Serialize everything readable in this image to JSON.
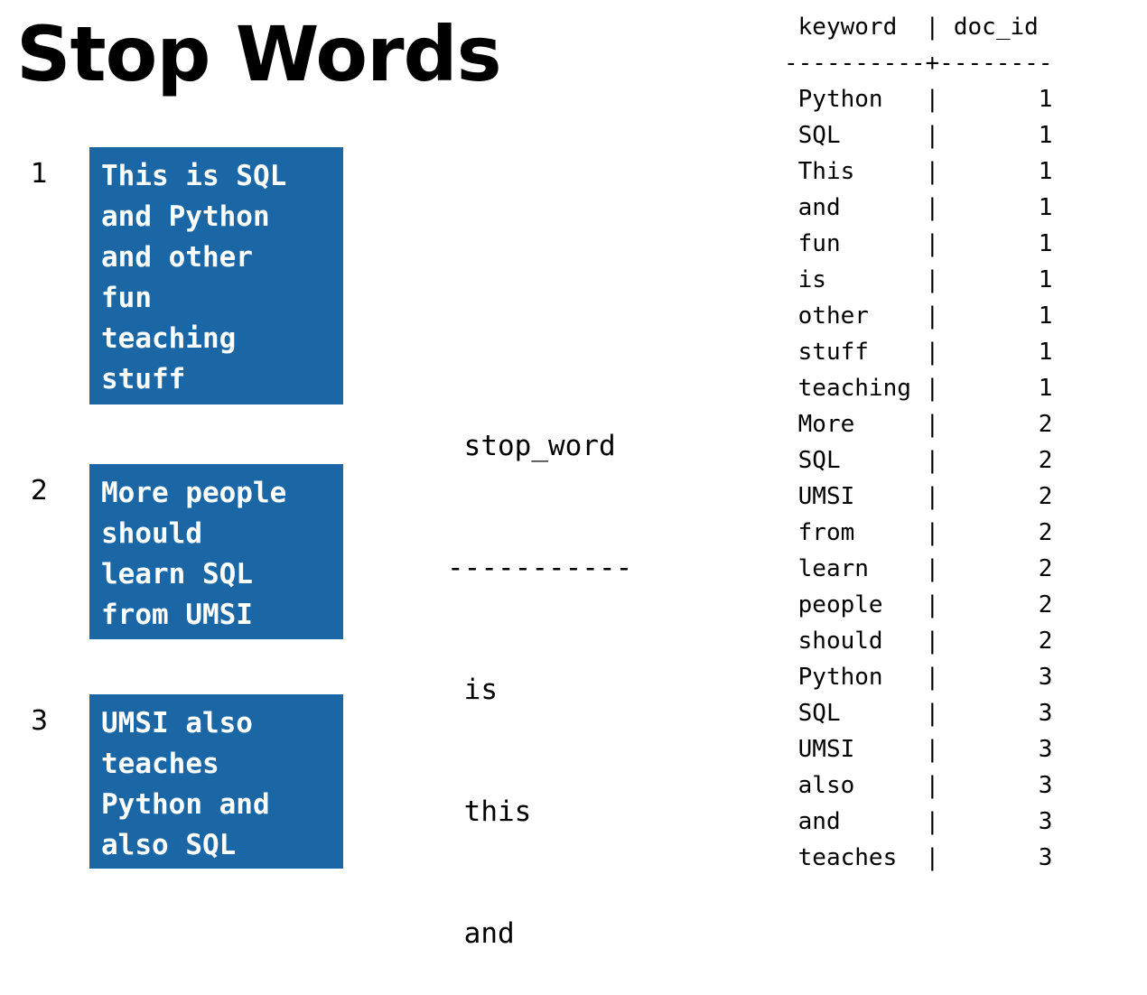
{
  "title": "Stop Words",
  "documents": [
    {
      "id": "1",
      "lines": [
        "This is SQL",
        "and Python",
        "and other",
        "fun",
        "teaching",
        "stuff"
      ]
    },
    {
      "id": "2",
      "lines": [
        "More people",
        "should",
        "learn SQL",
        "from UMSI"
      ]
    },
    {
      "id": "3",
      "lines": [
        "UMSI also",
        "teaches",
        "Python and",
        "also SQL"
      ]
    }
  ],
  "stop_words": {
    "header": "stop_word",
    "separator": "-----------",
    "rows": [
      "is",
      "this",
      "and"
    ]
  },
  "keyword_table": {
    "headers": [
      "keyword",
      "doc_id"
    ],
    "separator": "----------+--------",
    "rows": [
      [
        "Python",
        "1"
      ],
      [
        "SQL",
        "1"
      ],
      [
        "This",
        "1"
      ],
      [
        "and",
        "1"
      ],
      [
        "fun",
        "1"
      ],
      [
        "is",
        "1"
      ],
      [
        "other",
        "1"
      ],
      [
        "stuff",
        "1"
      ],
      [
        "teaching",
        "1"
      ],
      [
        "More",
        "2"
      ],
      [
        "SQL",
        "2"
      ],
      [
        "UMSI",
        "2"
      ],
      [
        "from",
        "2"
      ],
      [
        "learn",
        "2"
      ],
      [
        "people",
        "2"
      ],
      [
        "should",
        "2"
      ],
      [
        "Python",
        "3"
      ],
      [
        "SQL",
        "3"
      ],
      [
        "UMSI",
        "3"
      ],
      [
        "also",
        "3"
      ],
      [
        "and",
        "3"
      ],
      [
        "teaches",
        "3"
      ]
    ]
  },
  "colors": {
    "doc_box_background": "#1b67a6",
    "doc_box_text": "#ffffff"
  }
}
